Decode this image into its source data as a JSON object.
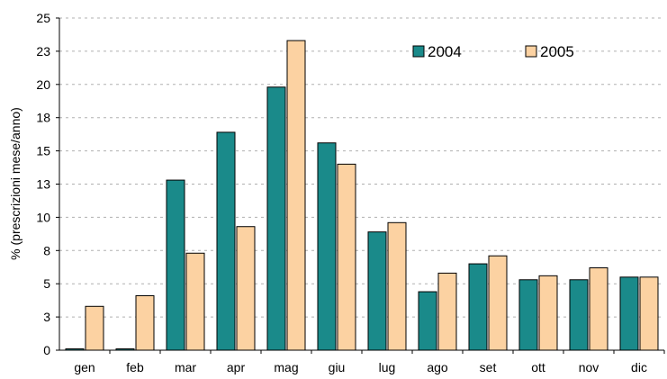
{
  "chart_data": {
    "type": "bar",
    "categories": [
      "gen",
      "feb",
      "mar",
      "apr",
      "mag",
      "giu",
      "lug",
      "ago",
      "set",
      "ott",
      "nov",
      "dic"
    ],
    "series": [
      {
        "name": "2004",
        "color": "#1a8a8a",
        "values": [
          0.1,
          0.1,
          12.8,
          16.4,
          19.8,
          15.6,
          8.9,
          4.4,
          6.5,
          5.3,
          5.3,
          5.5
        ]
      },
      {
        "name": "2005",
        "color": "#fcd2a2",
        "values": [
          3.3,
          4.1,
          7.3,
          9.3,
          23.3,
          14.0,
          9.6,
          5.8,
          7.1,
          5.6,
          6.2,
          5.5
        ]
      }
    ],
    "yticks": [
      "0",
      "3",
      "5",
      "8",
      "10",
      "13",
      "15",
      "18",
      "20",
      "23",
      "25"
    ],
    "ylim": [
      0,
      25
    ],
    "ylabel": "% (prescrizioni mese/anno)",
    "xlabel": "",
    "title": "",
    "grid": true,
    "legend_position": "top-right"
  }
}
